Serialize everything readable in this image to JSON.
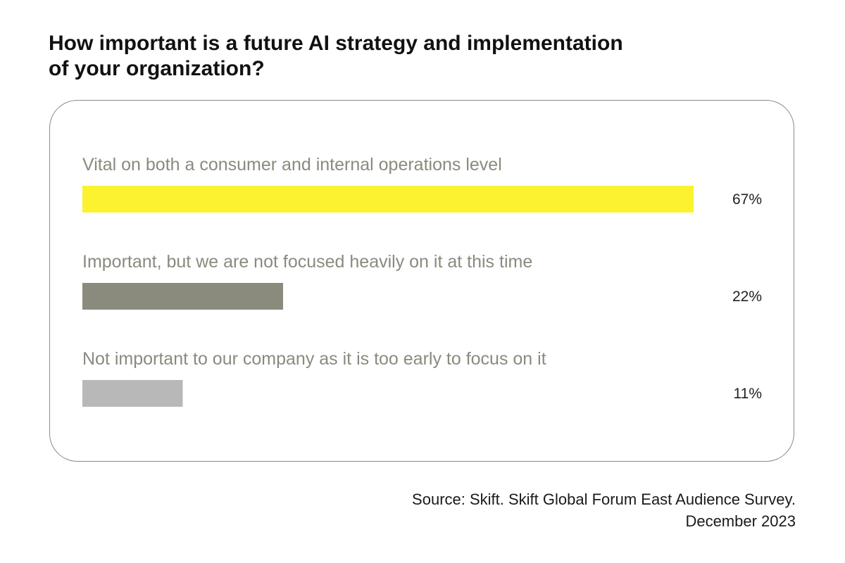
{
  "title_lines": [
    "How important is a future AI strategy and implementation",
    "of your organization?"
  ],
  "source_lines": [
    "Source: Skift. Skift Global Forum East Audience Survey.",
    "December 2023"
  ],
  "chart_data": {
    "type": "bar",
    "orientation": "horizontal",
    "title": "How important is a future AI strategy and implementation of your organization?",
    "categories": [
      "Vital on both a consumer and internal operations level",
      "Important, but we are not focused heavily on it at this time",
      "Not important to our company as it is too early to focus on it"
    ],
    "values": [
      67,
      22,
      11
    ],
    "value_labels": [
      "67%",
      "22%",
      "11%"
    ],
    "colors": [
      "#fcf22f",
      "#8b8b7d",
      "#b8b8b8"
    ],
    "unit": "%",
    "xlim": [
      0,
      67
    ],
    "grid": false,
    "legend": "none"
  }
}
